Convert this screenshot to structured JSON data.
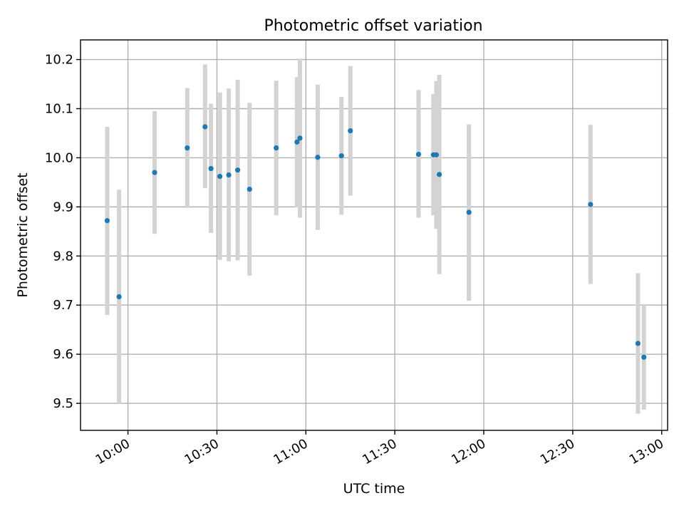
{
  "chart_data": {
    "type": "scatter",
    "title": "Photometric offset variation",
    "xlabel": "UTC time",
    "ylabel": "Photometric offset",
    "x_axis_type": "time",
    "xlim": [
      "09:44",
      "13:02"
    ],
    "ylim": [
      9.445,
      10.24
    ],
    "x_ticks": [
      "10:00",
      "10:30",
      "11:00",
      "11:30",
      "12:00",
      "12:30",
      "13:00"
    ],
    "y_ticks": [
      "9.5",
      "9.6",
      "9.7",
      "9.8",
      "9.9",
      "10.0",
      "10.1",
      "10.2"
    ],
    "grid": true,
    "error_bar_color": "#d3d3d3",
    "marker_color": "#1f77b4",
    "series": [
      {
        "points": [
          {
            "time": "09:53",
            "y": 9.872,
            "low": 9.68,
            "high": 10.063
          },
          {
            "time": "09:57",
            "y": 9.717,
            "low": 9.5,
            "high": 9.935
          },
          {
            "time": "10:09",
            "y": 9.97,
            "low": 9.845,
            "high": 10.095
          },
          {
            "time": "10:20",
            "y": 10.02,
            "low": 9.898,
            "high": 10.142
          },
          {
            "time": "10:26",
            "y": 10.063,
            "low": 9.938,
            "high": 10.19
          },
          {
            "time": "10:28",
            "y": 9.978,
            "low": 9.847,
            "high": 10.11
          },
          {
            "time": "10:31",
            "y": 9.962,
            "low": 9.792,
            "high": 10.133
          },
          {
            "time": "10:34",
            "y": 9.965,
            "low": 9.789,
            "high": 10.141
          },
          {
            "time": "10:37",
            "y": 9.975,
            "low": 9.791,
            "high": 10.159
          },
          {
            "time": "10:41",
            "y": 9.936,
            "low": 9.76,
            "high": 10.112
          },
          {
            "time": "10:50",
            "y": 10.02,
            "low": 9.883,
            "high": 10.157
          },
          {
            "time": "10:57",
            "y": 10.032,
            "low": 9.899,
            "high": 10.164
          },
          {
            "time": "10:58",
            "y": 10.04,
            "low": 9.878,
            "high": 10.202
          },
          {
            "time": "11:04",
            "y": 10.001,
            "low": 9.853,
            "high": 10.149
          },
          {
            "time": "11:12",
            "y": 10.004,
            "low": 9.884,
            "high": 10.124
          },
          {
            "time": "11:15",
            "y": 10.055,
            "low": 9.923,
            "high": 10.187
          },
          {
            "time": "11:38",
            "y": 10.007,
            "low": 9.878,
            "high": 10.138
          },
          {
            "time": "11:43",
            "y": 10.006,
            "low": 9.883,
            "high": 10.13
          },
          {
            "time": "11:44",
            "y": 10.006,
            "low": 9.855,
            "high": 10.156
          },
          {
            "time": "11:45",
            "y": 9.966,
            "low": 9.763,
            "high": 10.169
          },
          {
            "time": "11:55",
            "y": 9.889,
            "low": 9.709,
            "high": 10.068
          },
          {
            "time": "12:36",
            "y": 9.905,
            "low": 9.743,
            "high": 10.067
          },
          {
            "time": "12:52",
            "y": 9.622,
            "low": 9.479,
            "high": 9.765
          },
          {
            "time": "12:54",
            "y": 9.594,
            "low": 9.487,
            "high": 9.702
          }
        ]
      }
    ]
  }
}
